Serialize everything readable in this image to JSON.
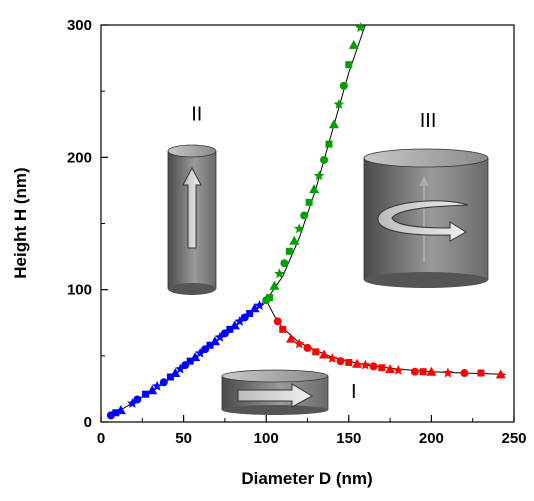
{
  "chart_data": {
    "type": "scatter",
    "xlabel": "Diameter D (nm)",
    "ylabel": "Height H (nm)",
    "xlim": [
      0,
      250
    ],
    "ylim": [
      0,
      300
    ],
    "xticks": [
      0,
      50,
      100,
      150,
      200,
      250
    ],
    "yticks": [
      0,
      100,
      200,
      300
    ],
    "grid": false,
    "region_labels": [
      {
        "text": "I",
        "x": 153,
        "y": 18
      },
      {
        "text": "II",
        "x": 58,
        "y": 228
      },
      {
        "text": "III",
        "x": 198,
        "y": 223
      }
    ],
    "series": [
      {
        "color": "#0000ff",
        "points": [
          [
            6,
            5
          ],
          [
            9,
            7
          ],
          [
            12,
            9
          ],
          [
            19,
            14
          ],
          [
            22,
            17
          ],
          [
            27,
            21
          ],
          [
            31,
            24
          ],
          [
            34,
            27
          ],
          [
            38,
            30
          ],
          [
            42,
            34
          ],
          [
            45,
            37
          ],
          [
            48,
            40
          ],
          [
            51,
            43
          ],
          [
            54,
            46
          ],
          [
            57,
            49
          ],
          [
            60,
            52
          ],
          [
            63,
            55
          ],
          [
            66,
            58
          ],
          [
            69,
            61
          ],
          [
            72,
            64
          ],
          [
            75,
            67
          ],
          [
            78,
            70
          ],
          [
            81,
            73
          ],
          [
            84,
            76
          ],
          [
            87,
            79
          ],
          [
            90,
            82
          ],
          [
            93,
            86
          ],
          [
            96,
            88
          ]
        ]
      },
      {
        "color": "#00a000",
        "points": [
          [
            100,
            92
          ],
          [
            102,
            94
          ],
          [
            105,
            103
          ],
          [
            108,
            112
          ],
          [
            111,
            120
          ],
          [
            114,
            129
          ],
          [
            117,
            137
          ],
          [
            120,
            146
          ],
          [
            123,
            156
          ],
          [
            126,
            166
          ],
          [
            129,
            176
          ],
          [
            132,
            186
          ],
          [
            135,
            198
          ],
          [
            138,
            210
          ],
          [
            141,
            225
          ],
          [
            144,
            240
          ],
          [
            147,
            254
          ],
          [
            150,
            270
          ],
          [
            153,
            285
          ],
          [
            157,
            298
          ]
        ]
      },
      {
        "color": "#ff0000",
        "points": [
          [
            107,
            76
          ],
          [
            110,
            70
          ],
          [
            115,
            63
          ],
          [
            120,
            59
          ],
          [
            125,
            56
          ],
          [
            130,
            53
          ],
          [
            135,
            51
          ],
          [
            140,
            48
          ],
          [
            145,
            46
          ],
          [
            150,
            45
          ],
          [
            155,
            44
          ],
          [
            160,
            43
          ],
          [
            165,
            42
          ],
          [
            170,
            41
          ],
          [
            175,
            40
          ],
          [
            180,
            39
          ],
          [
            190,
            38
          ],
          [
            195,
            38
          ],
          [
            200,
            38
          ],
          [
            210,
            37
          ],
          [
            220,
            37
          ],
          [
            230,
            37
          ],
          [
            242,
            36
          ]
        ]
      }
    ],
    "fit_curves": [
      {
        "color": "#000000",
        "points": [
          [
            5,
            4
          ],
          [
            20,
            15
          ],
          [
            40,
            31
          ],
          [
            60,
            51
          ],
          [
            80,
            71
          ],
          [
            95,
            87
          ],
          [
            100,
            92
          ],
          [
            110,
            110
          ],
          [
            120,
            139
          ],
          [
            130,
            176
          ],
          [
            140,
            220
          ],
          [
            150,
            264
          ],
          [
            160,
            300
          ]
        ]
      },
      {
        "color": "#000000",
        "points": [
          [
            100,
            92
          ],
          [
            105,
            80
          ],
          [
            110,
            71
          ],
          [
            120,
            60
          ],
          [
            130,
            54
          ],
          [
            140,
            49
          ],
          [
            160,
            43
          ],
          [
            180,
            40
          ],
          [
            200,
            38
          ],
          [
            220,
            37
          ],
          [
            245,
            36
          ]
        ]
      }
    ]
  }
}
